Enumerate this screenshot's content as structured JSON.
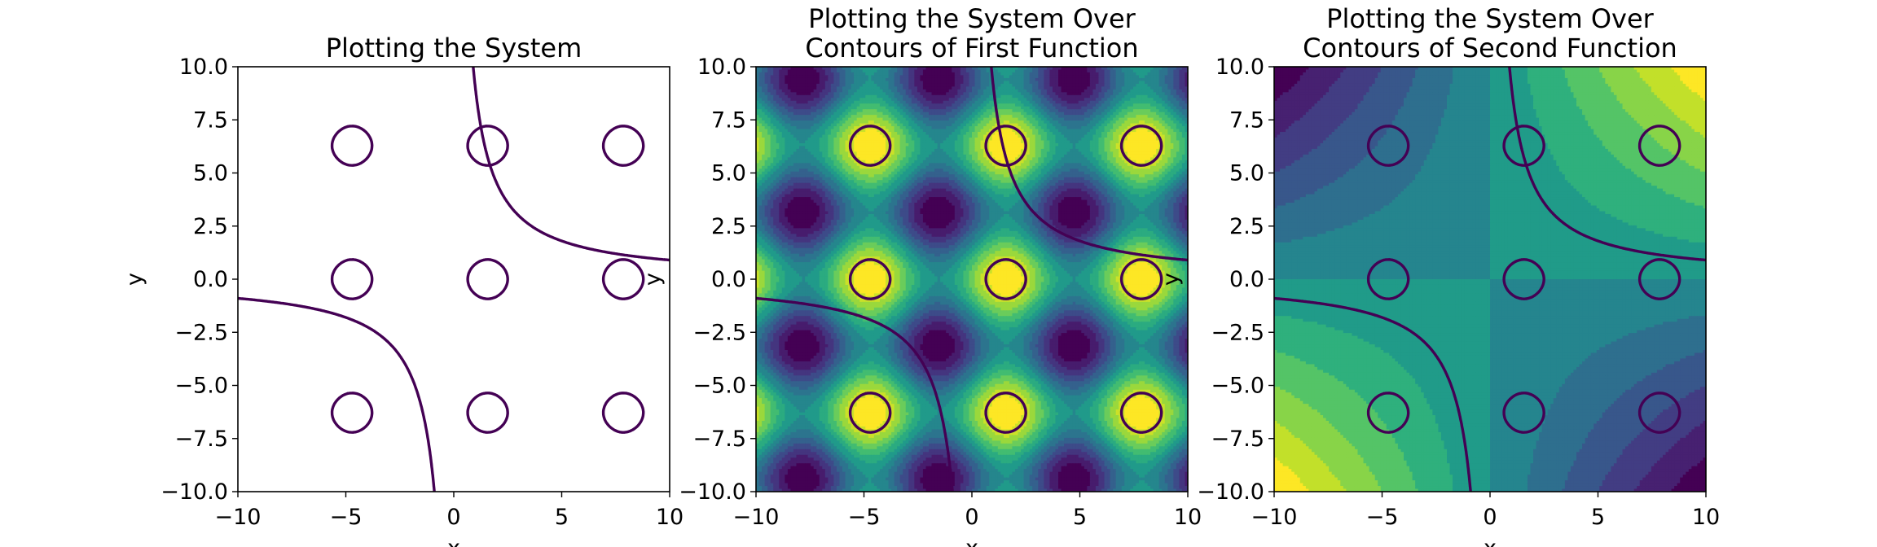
{
  "chart_data": [
    {
      "type": "contour",
      "title": "Plotting the System",
      "xlabel": "x",
      "ylabel": "y",
      "xlim": [
        -10,
        10
      ],
      "ylim": [
        -10,
        10
      ],
      "xticks": [
        "−10",
        "−5",
        "0",
        "5",
        "10"
      ],
      "yticks": [
        "−10.0",
        "−7.5",
        "−5.0",
        "−2.5",
        "0.0",
        "2.5",
        "5.0",
        "7.5",
        "10.0"
      ],
      "background": "none",
      "series": [
        {
          "equation": "sin(x) + cos(y) = 1.6",
          "color": "#440154"
        },
        {
          "equation": "x * y = 9",
          "color": "#440154"
        }
      ]
    },
    {
      "type": "contour",
      "title": "Plotting the System Over\nContours of First Function",
      "xlabel": "x",
      "ylabel": "y",
      "xlim": [
        -10,
        10
      ],
      "ylim": [
        -10,
        10
      ],
      "xticks": [
        "−10",
        "−5",
        "0",
        "5",
        "10"
      ],
      "yticks": [
        "−10.0",
        "−7.5",
        "−5.0",
        "−2.5",
        "0.0",
        "2.5",
        "5.0",
        "7.5",
        "10.0"
      ],
      "background": "filled contours of sin(x) + cos(y), viridis",
      "series": [
        {
          "equation": "sin(x) + cos(y) = 1.6",
          "color": "#440154"
        },
        {
          "equation": "x * y = 9",
          "color": "#440154"
        }
      ]
    },
    {
      "type": "contour",
      "title": "Plotting the System Over\nContours of Second Function",
      "xlabel": "x",
      "ylabel": "y",
      "xlim": [
        -10,
        10
      ],
      "ylim": [
        -10,
        10
      ],
      "xticks": [
        "−10",
        "−5",
        "0",
        "5",
        "10"
      ],
      "yticks": [
        "−10.0",
        "−7.5",
        "−5.0",
        "−2.5",
        "0.0",
        "2.5",
        "5.0",
        "7.5",
        "10.0"
      ],
      "background": "filled contours of x * y, viridis",
      "series": [
        {
          "equation": "sin(x) + cos(y) = 1.6",
          "color": "#440154"
        },
        {
          "equation": "x * y = 9",
          "color": "#440154"
        }
      ]
    }
  ]
}
